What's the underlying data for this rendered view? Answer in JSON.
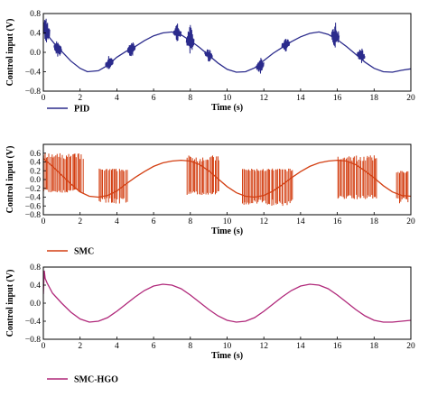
{
  "chart_data": [
    {
      "type": "line",
      "xlabel": "Time (s)",
      "ylabel": "Control input (V)",
      "xlim": [
        0,
        20
      ],
      "ylim": [
        -0.8,
        0.8
      ],
      "xticks": [
        "0",
        "2",
        "4",
        "6",
        "8",
        "10",
        "12",
        "14",
        "16",
        "18",
        "20"
      ],
      "yticks": [
        "0.8",
        "0.4",
        "0.0",
        "−0.4",
        "−0.8"
      ],
      "legend_position": "bottom-left",
      "series": [
        {
          "name": "PID",
          "color": "#2b2b8c",
          "x": [
            0,
            0.3,
            0.6,
            1.0,
            1.5,
            2.0,
            2.4,
            3.0,
            3.5,
            4.0,
            4.5,
            5.0,
            5.5,
            6.0,
            6.5,
            7.0,
            7.5,
            8.0,
            8.5,
            9.0,
            9.5,
            10.0,
            10.5,
            11.0,
            11.5,
            12.0,
            12.5,
            13.0,
            13.5,
            14.0,
            14.5,
            15.0,
            15.5,
            16.0,
            16.5,
            17.0,
            17.5,
            18.0,
            18.5,
            19.0,
            19.5,
            20.0
          ],
          "y": [
            0.52,
            0.32,
            0.18,
            0.02,
            -0.18,
            -0.33,
            -0.4,
            -0.38,
            -0.27,
            -0.1,
            0.02,
            0.12,
            0.24,
            0.34,
            0.4,
            0.42,
            0.36,
            0.24,
            0.1,
            -0.06,
            -0.22,
            -0.35,
            -0.41,
            -0.4,
            -0.32,
            -0.17,
            -0.02,
            0.1,
            0.22,
            0.32,
            0.39,
            0.42,
            0.37,
            0.26,
            0.12,
            -0.04,
            -0.2,
            -0.33,
            -0.4,
            -0.41,
            -0.37,
            -0.34
          ],
          "chatter_bursts": [
            [
              0.15,
              0.5,
              0.3
            ],
            [
              0.8,
              0.05,
              0.2
            ],
            [
              3.6,
              -0.2,
              0.18
            ],
            [
              4.8,
              0.05,
              0.2
            ],
            [
              7.3,
              0.42,
              0.2
            ],
            [
              8.0,
              0.22,
              0.35
            ],
            [
              9.0,
              -0.05,
              0.15
            ],
            [
              11.8,
              -0.32,
              0.18
            ],
            [
              13.2,
              0.18,
              0.18
            ],
            [
              15.9,
              0.38,
              0.3
            ],
            [
              17.3,
              0.0,
              0.18
            ]
          ]
        }
      ]
    },
    {
      "type": "line",
      "xlabel": "Time (s)",
      "ylabel": "Control input (V)",
      "xlim": [
        0,
        20
      ],
      "ylim": [
        -0.8,
        0.8
      ],
      "xticks": [
        "0",
        "2",
        "4",
        "6",
        "8",
        "10",
        "12",
        "14",
        "16",
        "18",
        "20"
      ],
      "yticks": [
        "0.6",
        "0.4",
        "0.2",
        "0.0",
        "−0.2",
        "−0.4",
        "−0.6",
        "−0.8"
      ],
      "legend_position": "bottom-left",
      "series": [
        {
          "name": "SMC",
          "color": "#d33f12",
          "x": [
            0,
            0.5,
            1.0,
            1.5,
            2.0,
            2.5,
            3.0,
            3.5,
            4.0,
            4.5,
            5.0,
            5.5,
            6.0,
            6.5,
            7.0,
            7.5,
            8.0,
            8.5,
            9.0,
            9.5,
            10.0,
            10.5,
            11.0,
            11.5,
            12.0,
            12.5,
            13.0,
            13.5,
            14.0,
            14.5,
            15.0,
            15.5,
            16.0,
            16.5,
            17.0,
            17.5,
            18.0,
            18.5,
            19.0,
            19.5,
            20.0
          ],
          "y": [
            0.48,
            0.3,
            0.1,
            -0.1,
            -0.28,
            -0.38,
            -0.4,
            -0.36,
            -0.26,
            -0.1,
            0.05,
            0.18,
            0.3,
            0.38,
            0.42,
            0.44,
            0.42,
            0.34,
            0.2,
            0.02,
            -0.16,
            -0.3,
            -0.38,
            -0.4,
            -0.36,
            -0.26,
            -0.12,
            0.04,
            0.18,
            0.3,
            0.38,
            0.42,
            0.44,
            0.42,
            0.34,
            0.2,
            0.04,
            -0.14,
            -0.28,
            -0.36,
            -0.38
          ],
          "switch_bands": [
            [
              0.0,
              2.2,
              0.6,
              -0.3
            ],
            [
              3.0,
              4.6,
              0.25,
              -0.55
            ],
            [
              7.8,
              9.6,
              0.55,
              -0.35
            ],
            [
              10.8,
              13.6,
              0.25,
              -0.6
            ],
            [
              16.0,
              18.2,
              0.55,
              -0.45
            ],
            [
              19.2,
              19.9,
              0.2,
              -0.55
            ]
          ]
        }
      ]
    },
    {
      "type": "line",
      "xlabel": "Time (s)",
      "ylabel": "Control input (V)",
      "xlim": [
        0,
        20
      ],
      "ylim": [
        -0.8,
        0.8
      ],
      "xticks": [
        "0",
        "2",
        "4",
        "6",
        "8",
        "10",
        "12",
        "14",
        "16",
        "18",
        "20"
      ],
      "yticks": [
        "0.8",
        "0.4",
        "0.0",
        "−0.4",
        "−0.8"
      ],
      "legend_position": "bottom-left",
      "series": [
        {
          "name": "SMC-HGO",
          "color": "#b0287a",
          "x": [
            0,
            0.05,
            0.1,
            0.2,
            0.5,
            1.0,
            1.5,
            2.0,
            2.5,
            3.0,
            3.5,
            4.0,
            4.5,
            5.0,
            5.5,
            6.0,
            6.5,
            7.0,
            7.5,
            8.0,
            8.5,
            9.0,
            9.5,
            10.0,
            10.5,
            11.0,
            11.5,
            12.0,
            12.5,
            13.0,
            13.5,
            14.0,
            14.5,
            15.0,
            15.5,
            16.0,
            16.5,
            17.0,
            17.5,
            18.0,
            18.5,
            19.0,
            19.5,
            20.0
          ],
          "y": [
            0.2,
            0.72,
            0.55,
            0.45,
            0.22,
            0.0,
            -0.2,
            -0.35,
            -0.42,
            -0.4,
            -0.32,
            -0.18,
            -0.02,
            0.14,
            0.28,
            0.38,
            0.42,
            0.4,
            0.32,
            0.18,
            0.02,
            -0.14,
            -0.28,
            -0.38,
            -0.42,
            -0.4,
            -0.32,
            -0.18,
            -0.02,
            0.14,
            0.28,
            0.38,
            0.42,
            0.4,
            0.32,
            0.18,
            0.02,
            -0.14,
            -0.28,
            -0.38,
            -0.42,
            -0.42,
            -0.4,
            -0.38
          ]
        }
      ]
    }
  ]
}
